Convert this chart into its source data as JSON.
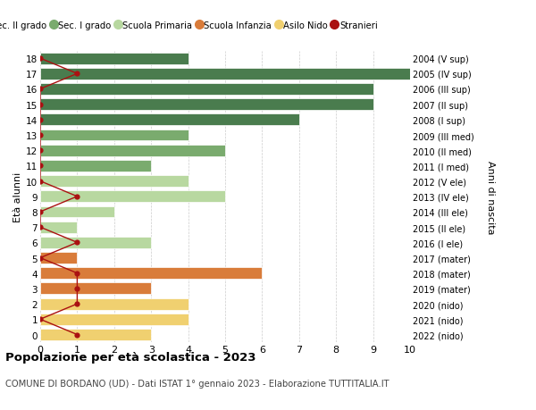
{
  "ages": [
    18,
    17,
    16,
    15,
    14,
    13,
    12,
    11,
    10,
    9,
    8,
    7,
    6,
    5,
    4,
    3,
    2,
    1,
    0
  ],
  "years": [
    "2004 (V sup)",
    "2005 (IV sup)",
    "2006 (III sup)",
    "2007 (II sup)",
    "2008 (I sup)",
    "2009 (III med)",
    "2010 (II med)",
    "2011 (I med)",
    "2012 (V ele)",
    "2013 (IV ele)",
    "2014 (III ele)",
    "2015 (II ele)",
    "2016 (I ele)",
    "2017 (mater)",
    "2018 (mater)",
    "2019 (mater)",
    "2020 (nido)",
    "2021 (nido)",
    "2022 (nido)"
  ],
  "bar_values": [
    4,
    10,
    9,
    9,
    7,
    4,
    5,
    3,
    4,
    5,
    2,
    1,
    3,
    1,
    6,
    3,
    4,
    4,
    3
  ],
  "bar_colors": [
    "#4a7c4e",
    "#4a7c4e",
    "#4a7c4e",
    "#4a7c4e",
    "#4a7c4e",
    "#7aab6e",
    "#7aab6e",
    "#7aab6e",
    "#b8d8a0",
    "#b8d8a0",
    "#b8d8a0",
    "#b8d8a0",
    "#b8d8a0",
    "#d97c3a",
    "#d97c3a",
    "#d97c3a",
    "#f0d070",
    "#f0d070",
    "#f0d070"
  ],
  "stranieri_values": [
    0,
    1,
    0,
    0,
    0,
    0,
    0,
    0,
    0,
    1,
    0,
    0,
    1,
    0,
    1,
    1,
    1,
    0,
    1
  ],
  "stranieri_color": "#aa1111",
  "stranieri_line_color": "#aa1111",
  "legend_labels": [
    "Sec. II grado",
    "Sec. I grado",
    "Scuola Primaria",
    "Scuola Infanzia",
    "Asilo Nido",
    "Stranieri"
  ],
  "legend_colors": [
    "#4a7c4e",
    "#7aab6e",
    "#b8d8a0",
    "#d97c3a",
    "#f0d070",
    "#aa1111"
  ],
  "title": "Popolazione per età scolastica - 2023",
  "subtitle": "COMUNE DI BORDANO (UD) - Dati ISTAT 1° gennaio 2023 - Elaborazione TUTTITALIA.IT",
  "ylabel": "Età alunni",
  "ylabel2": "Anni di nascita",
  "xlim": [
    0,
    10
  ],
  "background_color": "#ffffff",
  "grid_color": "#cccccc"
}
